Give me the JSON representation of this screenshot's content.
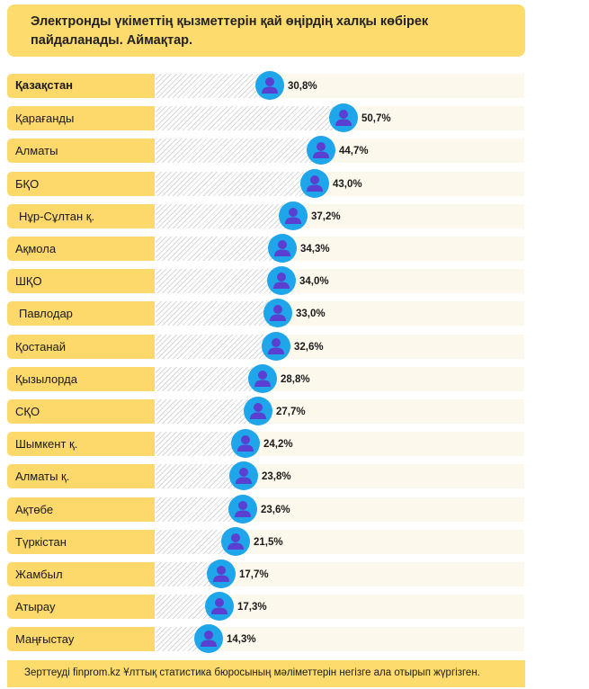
{
  "title": "Электронды үкіметтің қызметтерін қай өңірдің халқы көбірек пайдаланады. Аймақтар.",
  "footer": "Зерттеуді finprom.kz Ұлттық статистика бюросының мәліметтерін негізге ала отырып жүргізген.",
  "colors": {
    "label_background": "#fdd86a",
    "marker": "#1fa6ea",
    "marker_icon": "#5a3fd0",
    "hatch": "#d7d7d7"
  },
  "chart_data": {
    "type": "bar",
    "orientation": "horizontal",
    "categories": [
      "Қазақстан",
      "Қарағанды",
      "Алматы",
      "БҚО",
      "Нұр-Сұлтан қ.",
      "Ақмола",
      "ШҚО",
      "Павлодар",
      "Қостанай",
      "Қызылорда",
      "СҚО",
      "Шымкент қ.",
      "Алматы қ.",
      "Ақтөбе",
      "Түркістан",
      "Жамбыл",
      "Атырау",
      "Маңғыстау"
    ],
    "values": [
      30.8,
      50.7,
      44.7,
      43.0,
      37.2,
      34.3,
      34.0,
      33.0,
      32.6,
      28.8,
      27.7,
      24.2,
      23.8,
      23.6,
      21.5,
      17.7,
      17.3,
      14.3
    ],
    "value_labels": [
      "30,8%",
      "50,7%",
      "44,7%",
      "43,0%",
      "37,2%",
      "34,3%",
      "34,0%",
      "33,0%",
      "32,6%",
      "28,8%",
      "27,7%",
      "24,2%",
      "23,8%",
      "23,6%",
      "21,5%",
      "17,7%",
      "17,3%",
      "14,3%"
    ],
    "unit": "%",
    "highlighted_category": "Қазақстан",
    "marker_icon": "person-icon"
  }
}
